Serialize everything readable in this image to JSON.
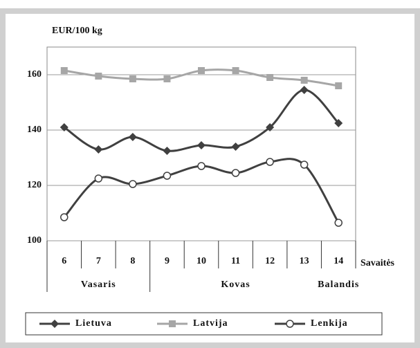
{
  "chart_data": {
    "type": "line",
    "y_label": "EUR/100 kg",
    "x_label": "Savaitės",
    "categories": [
      "6",
      "7",
      "8",
      "9",
      "10",
      "11",
      "12",
      "13",
      "14"
    ],
    "month_labels": [
      "Vasaris",
      "Kovas",
      "Balandis"
    ],
    "ylim": [
      100,
      170
    ],
    "yticks": [
      100,
      120,
      140,
      160
    ],
    "grid": true,
    "series": [
      {
        "name": "Lietuva",
        "color": "#404040",
        "marker": "diamond",
        "values": [
          141,
          133,
          137.5,
          132.5,
          134.5,
          134,
          141,
          154.5,
          142.5
        ]
      },
      {
        "name": "Latvija",
        "color": "#a6a6a6",
        "marker": "square",
        "values": [
          161.5,
          159.5,
          158.5,
          158.5,
          161.5,
          161.5,
          159,
          158,
          156
        ]
      },
      {
        "name": "Lenkija",
        "color": "#404040",
        "marker": "circle",
        "values": [
          108.5,
          122.5,
          120.5,
          123.5,
          127,
          124.5,
          128.5,
          127.5,
          106.5
        ]
      }
    ]
  }
}
